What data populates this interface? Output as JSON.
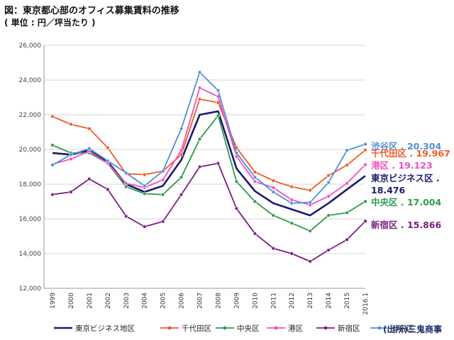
{
  "header": {
    "title": "図：東京都心部のオフィス募集賃料の推移",
    "unit": "( 単位 : 円／坪当たり )"
  },
  "source": "(出所)三鬼商事",
  "chart_data": {
    "type": "line",
    "title": "図：東京都心部のオフィス募集賃料の推移",
    "subtitle": "( 単位 : 円／坪当たり )",
    "xlabel": "",
    "ylabel": "",
    "ylim": [
      12000,
      26000
    ],
    "yticks": [
      "12,000",
      "14,000",
      "16,000",
      "18,000",
      "20,000",
      "22,000",
      "24,000",
      "26,000"
    ],
    "ytick_values": [
      12000,
      14000,
      16000,
      18000,
      20000,
      22000,
      24000,
      26000
    ],
    "categories": [
      "1999",
      "2000",
      "2001",
      "2002",
      "2003",
      "2004",
      "2005",
      "2006",
      "2007",
      "2008",
      "2009",
      "2010",
      "2011",
      "2012",
      "2013",
      "2014",
      "2015",
      "2016.1"
    ],
    "grid": true,
    "legend_position": "bottom",
    "series": [
      {
        "name": "東京ビジネス地区",
        "color": "#1c1a6e",
        "marker": "none",
        "values": [
          19800,
          19700,
          19950,
          19300,
          18000,
          17550,
          17900,
          19400,
          22000,
          22200,
          18900,
          17600,
          16900,
          16550,
          16200,
          16900,
          17700,
          18476
        ]
      },
      {
        "name": "千代田区",
        "color": "#f05a24",
        "marker": "circle",
        "values": [
          21900,
          21450,
          21200,
          20100,
          18600,
          18550,
          18750,
          19700,
          22900,
          22700,
          20100,
          18700,
          18200,
          17850,
          17650,
          18500,
          19100,
          19967
        ]
      },
      {
        "name": "中央区",
        "color": "#2e9a4e",
        "marker": "circle",
        "values": [
          20250,
          19800,
          19800,
          19200,
          17850,
          17450,
          17400,
          18400,
          20600,
          21950,
          18150,
          17000,
          16200,
          15750,
          15300,
          16200,
          16350,
          17004
        ]
      },
      {
        "name": "港区",
        "color": "#f050c0",
        "marker": "circle",
        "values": [
          19150,
          19450,
          19900,
          19200,
          18050,
          17800,
          18250,
          19950,
          23550,
          23050,
          19600,
          18150,
          17800,
          17100,
          16800,
          17300,
          18050,
          19123
        ]
      },
      {
        "name": "新宿区",
        "color": "#7a1f80",
        "marker": "circle",
        "values": [
          17400,
          17550,
          18300,
          17700,
          16150,
          15550,
          15850,
          17400,
          19000,
          19200,
          16600,
          15150,
          14300,
          14000,
          13550,
          14200,
          14800,
          15866
        ]
      },
      {
        "name": "渋谷区",
        "color": "#4f8fd8",
        "marker": "circle",
        "values": [
          19100,
          19700,
          20050,
          19350,
          18650,
          17900,
          18750,
          21200,
          24450,
          23400,
          19800,
          18400,
          17550,
          16900,
          16950,
          18100,
          19950,
          20304
        ]
      }
    ],
    "end_labels": [
      {
        "series": "渋谷区",
        "lines": [
          "渋谷区 . 20.304"
        ],
        "color": "#4f8fd8"
      },
      {
        "series": "千代田区",
        "lines": [
          "千代田区 . 19.967"
        ],
        "color": "#f05a24"
      },
      {
        "series": "港区",
        "lines": [
          "港区 . 19.123"
        ],
        "color": "#f050c0"
      },
      {
        "series": "東京ビジネス地区",
        "lines": [
          "東京ビジネス区 .",
          "18.476"
        ],
        "color": "#1c1a6e"
      },
      {
        "series": "中央区",
        "lines": [
          "中央区 . 17.004"
        ],
        "color": "#2e9a4e"
      },
      {
        "series": "新宿区",
        "lines": [
          "新宿区 . 15.866"
        ],
        "color": "#7a1f80"
      }
    ]
  }
}
